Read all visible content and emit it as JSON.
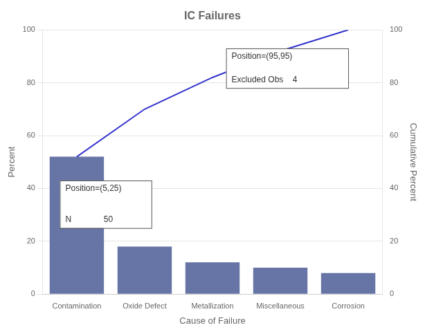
{
  "chart_data": {
    "type": "bar",
    "title": "IC Failures",
    "xlabel": "Cause of Failure",
    "ylabel": "Percent",
    "y2label": "Cumulative Percent",
    "categories": [
      "Contamination",
      "Oxide Defect",
      "Metallization",
      "Miscellaneous",
      "Corrosion"
    ],
    "series": [
      {
        "type": "bar",
        "color": "#6675a5",
        "values": [
          52,
          18,
          12,
          10,
          8
        ]
      },
      {
        "type": "line",
        "color": "#3333cc",
        "axis": "y2",
        "values": [
          52,
          70,
          82,
          92,
          100
        ]
      }
    ],
    "ylim": [
      0,
      100
    ],
    "yticks": [
      0,
      20,
      40,
      60,
      80,
      100
    ],
    "y2lim": [
      0,
      100
    ],
    "y2ticks": [
      0,
      20,
      40,
      60,
      80,
      100
    ],
    "grid": true,
    "annotations": [
      [
        "Position=(5,25)",
        "N              50"
      ],
      [
        "Position=(95,95)",
        "Excluded Obs    4"
      ]
    ]
  }
}
